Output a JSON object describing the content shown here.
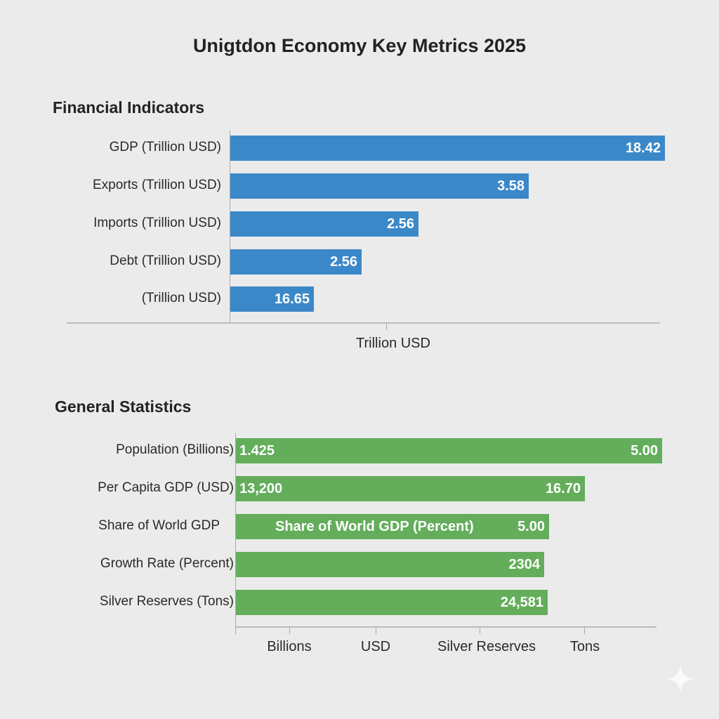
{
  "title": "Unigtdon Economy Key Metrics 2025",
  "colors": {
    "financial": "#3b88c9",
    "general": "#63ad5b",
    "background": "#ebebeb"
  },
  "chart_data": [
    {
      "type": "bar",
      "orientation": "horizontal",
      "title": "Financial Indicators",
      "categories": [
        "GDP (Trillion USD)",
        "Exports (Trillion USD)",
        "Imports (Trillion USD)",
        "Debt (Trillion USD)",
        "(Trillion USD)"
      ],
      "values": [
        18.42,
        3.58,
        2.56,
        2.56,
        16.65
      ],
      "value_labels": [
        "18.42",
        "3.58",
        "2.56",
        "2.56",
        "16.65"
      ],
      "xlabel": "Trillion USD",
      "grid": false,
      "legend": "none"
    },
    {
      "type": "bar",
      "orientation": "horizontal",
      "title": "General Statistics",
      "categories": [
        "Population (Billions)",
        "Per Capita GDP (USD)",
        "Share of World GDP",
        "Growth Rate (Percent)",
        "Silver Reserves (Tons)"
      ],
      "inner_labels": [
        "1.425",
        "13,200",
        "Share of World GDP (Percent)",
        "",
        ""
      ],
      "value_labels": [
        "5.00",
        "16.70",
        "5.00",
        "2304",
        "24,581"
      ],
      "x_tick_labels": [
        "Billions",
        "USD",
        "Silver Reserves",
        "Tons"
      ],
      "grid": false,
      "legend": "none"
    }
  ]
}
